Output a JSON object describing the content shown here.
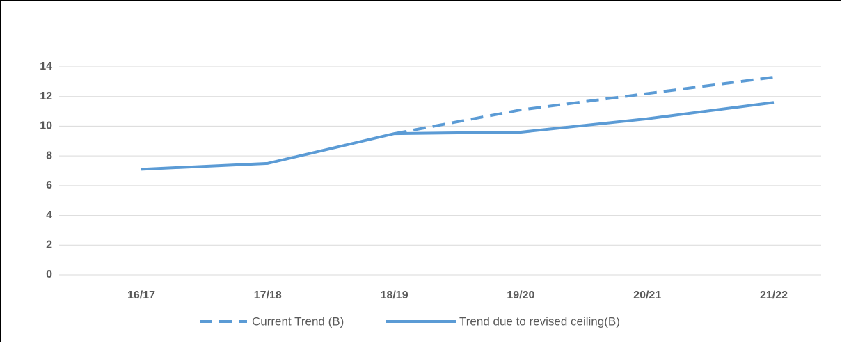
{
  "chart_data": {
    "type": "line",
    "categories": [
      "16/17",
      "17/18",
      "18/19",
      "19/20",
      "20/21",
      "21/22"
    ],
    "series": [
      {
        "name": "Current Trend (B)",
        "color": "#5b9bd5",
        "dash": true,
        "values": [
          null,
          null,
          9.5,
          11.1,
          12.2,
          13.3
        ]
      },
      {
        "name": "Trend due to revised ceiling(B)",
        "color": "#5b9bd5",
        "dash": false,
        "values": [
          7.1,
          7.5,
          9.5,
          9.6,
          10.5,
          11.6
        ]
      }
    ],
    "ylim": [
      0,
      14
    ],
    "yticks": [
      0,
      2,
      4,
      6,
      8,
      10,
      12,
      14
    ],
    "grid": true,
    "legend": "bottom"
  }
}
